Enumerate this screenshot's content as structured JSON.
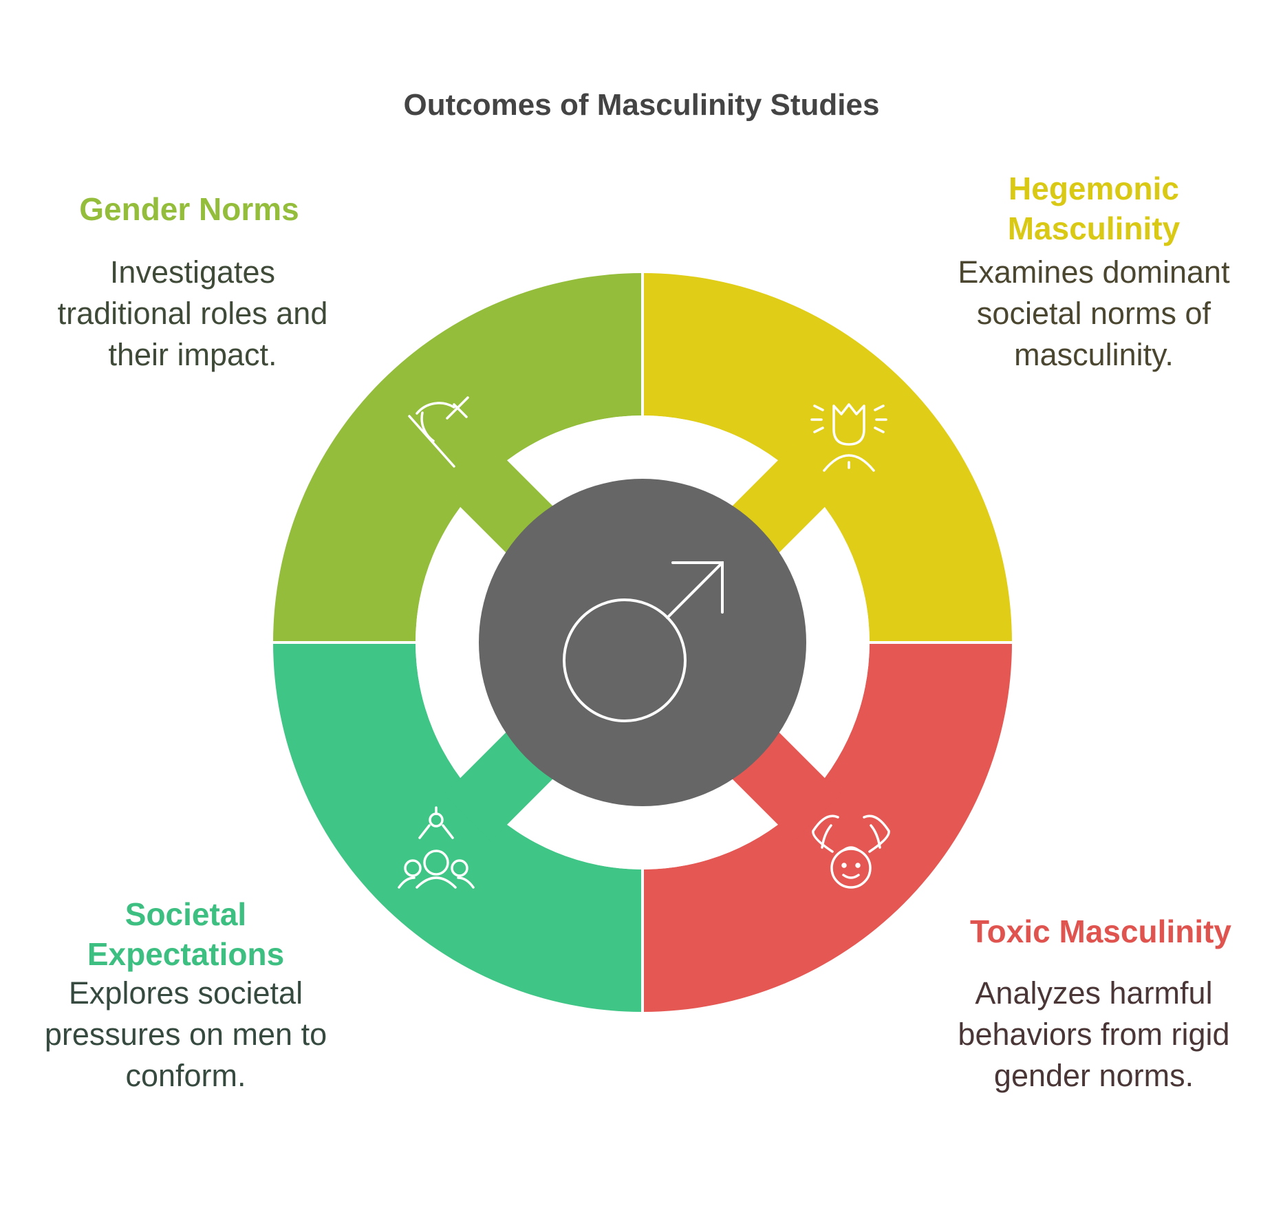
{
  "title": "Outcomes of Masculinity Studies",
  "center": {
    "icon": "male-symbol-icon",
    "color": "#666666"
  },
  "segments": [
    {
      "id": "gender-norms",
      "heading": "Gender Norms",
      "description": "Investigates traditional roles and their impact.",
      "color": "#93bd3b",
      "heading_color": "#93bd3b",
      "text_color": "#3f4a38",
      "icon": "crossed-gender-symbol-icon"
    },
    {
      "id": "hegemonic-masculinity",
      "heading": "Hegemonic Masculinity",
      "description": "Examines dominant societal norms of masculinity.",
      "color": "#dfcd17",
      "heading_color": "#d9c814",
      "text_color": "#4a4630",
      "icon": "crowned-person-icon"
    },
    {
      "id": "toxic-masculinity",
      "heading": "Toxic Masculinity",
      "description": "Analyzes harmful behaviors from rigid gender norms.",
      "color": "#e55753",
      "heading_color": "#e05450",
      "text_color": "#4a3636",
      "icon": "hands-around-face-icon"
    },
    {
      "id": "societal-expectations",
      "heading": "Societal Expectations",
      "description": "Explores societal pressures on men to conform.",
      "color": "#3fc585",
      "heading_color": "#3cbf80",
      "text_color": "#364a40",
      "icon": "group-pressure-icon"
    }
  ]
}
